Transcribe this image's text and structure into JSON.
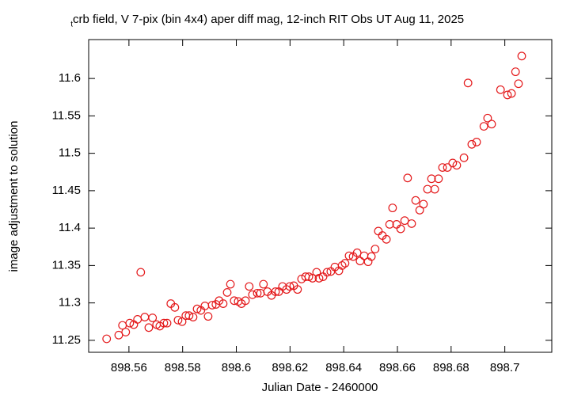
{
  "chart_data": {
    "type": "scatter",
    "title_prefix": "t",
    "title": "crb field, V 7-pix (bin 4x4) aper diff mag,  12-inch RIT Obs UT Aug 11, 2025",
    "x_label": "Julian Date - 2460000",
    "y_label": "image adjustment to solution",
    "xlim": [
      898.545,
      898.7175
    ],
    "ylim": [
      11.234,
      11.652
    ],
    "xticks": [
      898.56,
      898.58,
      898.6,
      898.62,
      898.64,
      898.66,
      898.68,
      898.7
    ],
    "yticks": [
      11.25,
      11.3,
      11.35,
      11.4,
      11.45,
      11.5,
      11.55,
      11.6
    ],
    "grid": false,
    "series": [
      {
        "color": "#e41a1c",
        "x": [
          898.5517,
          898.5562,
          898.5576,
          898.5588,
          898.5603,
          898.5618,
          898.5632,
          898.5644,
          898.5659,
          898.5674,
          898.5688,
          898.5703,
          898.5715,
          898.573,
          898.5742,
          898.5756,
          898.5771,
          898.5783,
          898.5798,
          898.5812,
          898.5824,
          898.5839,
          898.5854,
          898.5868,
          898.5883,
          898.5895,
          898.591,
          898.5924,
          898.5936,
          898.5951,
          898.5966,
          898.5978,
          898.5992,
          898.6007,
          898.6019,
          898.6034,
          898.6048,
          898.606,
          898.6078,
          898.609,
          898.6101,
          898.6116,
          898.6131,
          898.6146,
          898.6158,
          898.6172,
          898.6187,
          898.6199,
          898.6214,
          898.6228,
          898.6243,
          898.6258,
          898.627,
          898.6284,
          898.6299,
          898.6308,
          898.6323,
          898.6338,
          898.6352,
          898.6367,
          898.6382,
          898.6394,
          898.6405,
          898.642,
          898.6435,
          898.645,
          898.6461,
          898.6476,
          898.6491,
          898.6503,
          898.6517,
          898.6529,
          898.6544,
          898.6559,
          898.6571,
          898.6582,
          898.6597,
          898.6612,
          898.6627,
          898.6638,
          898.6653,
          898.6668,
          898.6683,
          898.6697,
          898.6712,
          898.6727,
          898.6739,
          898.6753,
          898.6768,
          898.6786,
          898.6806,
          898.6821,
          898.6848,
          898.6863,
          898.6877,
          898.6895,
          898.6922,
          898.6936,
          898.6951,
          898.6984,
          898.701,
          898.7025,
          898.704,
          898.7051,
          898.7063
        ],
        "values": [
          11.252,
          11.257,
          11.27,
          11.261,
          11.273,
          11.271,
          11.278,
          11.341,
          11.281,
          11.267,
          11.28,
          11.271,
          11.269,
          11.273,
          11.273,
          11.299,
          11.294,
          11.277,
          11.275,
          11.283,
          11.283,
          11.281,
          11.292,
          11.29,
          11.296,
          11.282,
          11.297,
          11.298,
          11.303,
          11.299,
          11.314,
          11.325,
          11.303,
          11.302,
          11.299,
          11.303,
          11.322,
          11.311,
          11.313,
          11.313,
          11.325,
          11.315,
          11.31,
          11.315,
          11.315,
          11.322,
          11.318,
          11.322,
          11.323,
          11.318,
          11.332,
          11.335,
          11.335,
          11.333,
          11.341,
          11.333,
          11.335,
          11.341,
          11.342,
          11.348,
          11.343,
          11.35,
          11.353,
          11.363,
          11.362,
          11.367,
          11.356,
          11.363,
          11.355,
          11.362,
          11.372,
          11.396,
          11.39,
          11.385,
          11.405,
          11.427,
          11.405,
          11.399,
          11.41,
          11.467,
          11.406,
          11.437,
          11.424,
          11.432,
          11.452,
          11.466,
          11.452,
          11.466,
          11.481,
          11.481,
          11.487,
          11.484,
          11.494,
          11.594,
          11.512,
          11.515,
          11.536,
          11.547,
          11.539,
          11.585,
          11.578,
          11.58,
          11.609,
          11.593,
          11.63
        ]
      }
    ]
  }
}
